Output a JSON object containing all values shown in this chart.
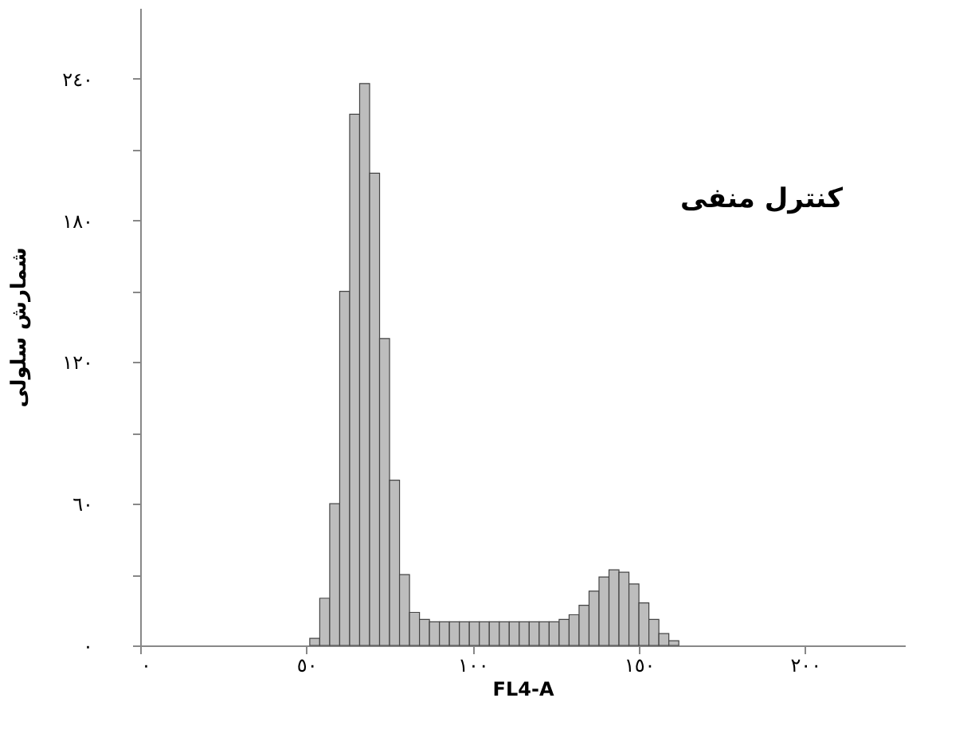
{
  "chart_data": {
    "type": "histogram",
    "xlabel": "FL4-A",
    "ylabel": "شمارش سلولی",
    "annotations": [
      "کنترل منفی"
    ],
    "bins": [
      51,
      54,
      57,
      60,
      63,
      66,
      69,
      72,
      75,
      78,
      81,
      84,
      87,
      90,
      93,
      96,
      99,
      102,
      105,
      108,
      111,
      114,
      117,
      120,
      123,
      126,
      129,
      132,
      135,
      138,
      141,
      144,
      147,
      150,
      153,
      156,
      159,
      162
    ],
    "values": [
      3,
      20,
      60,
      150,
      225,
      238,
      200,
      130,
      70,
      30,
      14,
      11,
      10,
      10,
      10,
      10,
      10,
      10,
      10,
      10,
      10,
      10,
      10,
      10,
      10,
      11,
      13,
      17,
      23,
      29,
      32,
      31,
      26,
      18,
      11,
      5,
      2
    ],
    "color": "#bdbdbd",
    "xlim": [
      0,
      230
    ],
    "xticks": [
      {
        "value": 0,
        "label": "٠"
      },
      {
        "value": 50,
        "label": "٥٠"
      },
      {
        "value": 100,
        "label": "١٠٠"
      },
      {
        "value": 150,
        "label": "١٥٠"
      },
      {
        "value": 200,
        "label": "٢٠٠"
      }
    ],
    "ylim": [
      0,
      270
    ],
    "yticks": [
      {
        "value": 0,
        "label": "٠"
      },
      {
        "value": 30,
        "label": null
      },
      {
        "value": 60,
        "label": "٦٠"
      },
      {
        "value": 90,
        "label": null
      },
      {
        "value": 120,
        "label": "١٢٠"
      },
      {
        "value": 150,
        "label": null
      },
      {
        "value": 180,
        "label": "١٨٠"
      },
      {
        "value": 210,
        "label": null
      },
      {
        "value": 240,
        "label": "٢٤٠"
      }
    ],
    "grid": false
  }
}
